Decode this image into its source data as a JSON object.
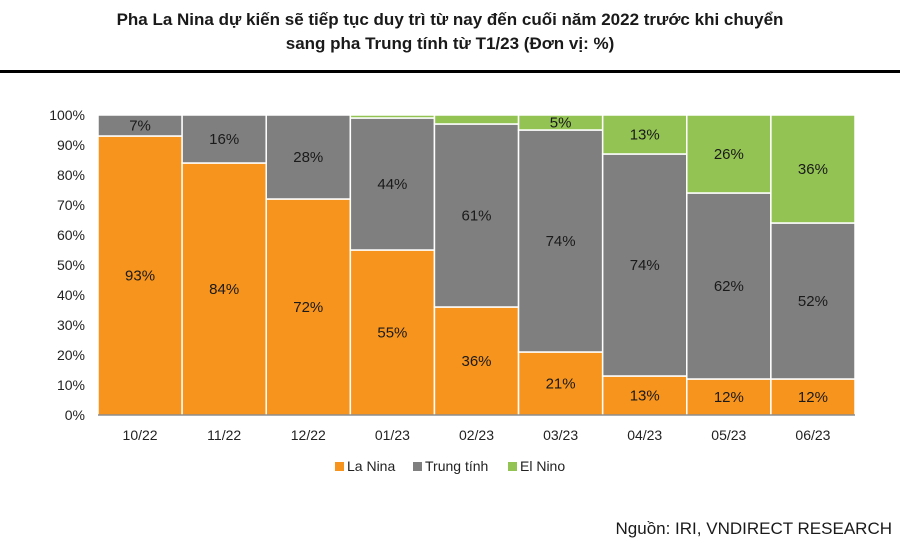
{
  "title_line1": "Pha La Nina dự kiến sẽ tiếp tục duy trì từ nay đến cuối năm 2022 trước khi chuyển",
  "title_line2": "sang pha Trung tính từ T1/23 (Đơn vị: %)",
  "source": "Nguồn: IRI, VNDIRECT RESEARCH",
  "chart_data": {
    "type": "bar",
    "stacked": true,
    "categories": [
      "10/22",
      "11/22",
      "12/22",
      "01/23",
      "02/23",
      "03/23",
      "04/23",
      "05/23",
      "06/23"
    ],
    "series": [
      {
        "name": "La Nina",
        "color": "#F7941D",
        "values": [
          93,
          84,
          72,
          55,
          36,
          21,
          13,
          12,
          12
        ],
        "labels": [
          "93%",
          "84%",
          "72%",
          "55%",
          "36%",
          "21%",
          "13%",
          "12%",
          "12%"
        ]
      },
      {
        "name": "Trung tính",
        "color": "#7F7F7F",
        "values": [
          7,
          16,
          28,
          44,
          61,
          74,
          74,
          62,
          52
        ],
        "labels": [
          "7%",
          "16%",
          "28%",
          "44%",
          "61%",
          "74%",
          "74%",
          "62%",
          "52%"
        ]
      },
      {
        "name": "El Nino",
        "color": "#92C353",
        "values": [
          0,
          0,
          0,
          1,
          3,
          5,
          13,
          26,
          36
        ],
        "labels": [
          "",
          "",
          "",
          "",
          "",
          "5%",
          "13%",
          "26%",
          "36%"
        ]
      }
    ],
    "ylim": [
      0,
      100
    ],
    "yticks": [
      "0%",
      "10%",
      "20%",
      "30%",
      "40%",
      "50%",
      "60%",
      "70%",
      "80%",
      "90%",
      "100%"
    ],
    "legend_position": "bottom",
    "grid": false
  }
}
